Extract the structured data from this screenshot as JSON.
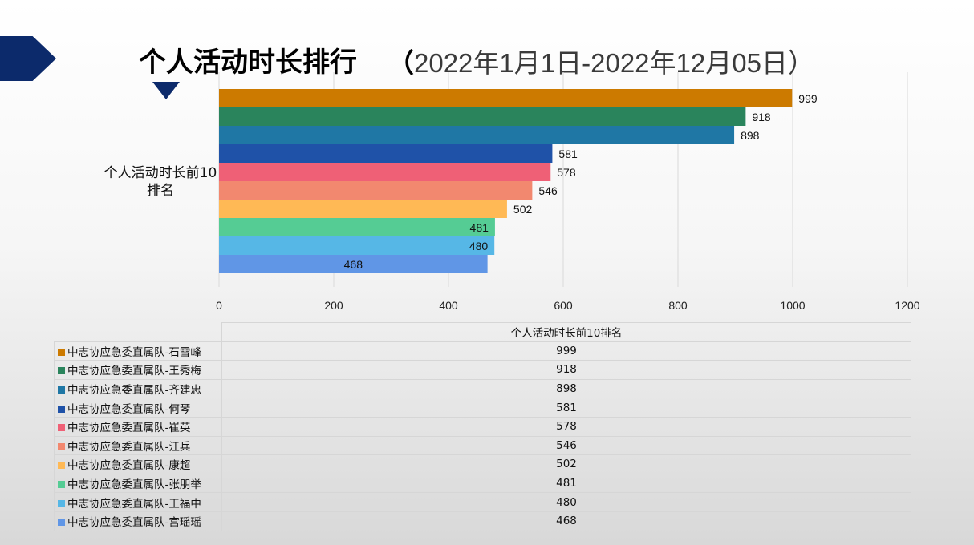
{
  "header": {
    "title": "个人活动时长排行",
    "subtitle_open": "（",
    "subtitle": "2022年1月1日-2022年12月05日",
    "subtitle_close": "）"
  },
  "chart_data": {
    "type": "bar",
    "orientation": "horizontal",
    "title": "个人活动时长排行（2022年1月1日-2022年12月05日）",
    "ylabel": "个人活动时长前10排名",
    "series_label": "个人活动时长前10排名",
    "xlim": [
      0,
      1200
    ],
    "xticks": [
      "0",
      "200",
      "400",
      "600",
      "800",
      "1000",
      "1200"
    ],
    "grid": true,
    "series": [
      {
        "name": "中志协应急委直属队-石雪峰",
        "value": 999,
        "color": "#cc7a00"
      },
      {
        "name": "中志协应急委直属队-王秀梅",
        "value": 918,
        "color": "#2a845c"
      },
      {
        "name": "中志协应急委直属队-齐建忠",
        "value": 898,
        "color": "#1f77a5"
      },
      {
        "name": "中志协应急委直属队-何琴",
        "value": 581,
        "color": "#1f52a8"
      },
      {
        "name": "中志协应急委直属队-崔英",
        "value": 578,
        "color": "#ef6076"
      },
      {
        "name": "中志协应急委直属队-江兵",
        "value": 546,
        "color": "#f2886f"
      },
      {
        "name": "中志协应急委直属队-康超",
        "value": 502,
        "color": "#ffb955"
      },
      {
        "name": "中志协应急委直属队-张朋举",
        "value": 481,
        "color": "#55cc94"
      },
      {
        "name": "中志协应急委直属队-王福中",
        "value": 480,
        "color": "#56b7e6"
      },
      {
        "name": "中志协应急委直属队-宫瑶瑶",
        "value": 468,
        "color": "#6096e6"
      }
    ]
  }
}
